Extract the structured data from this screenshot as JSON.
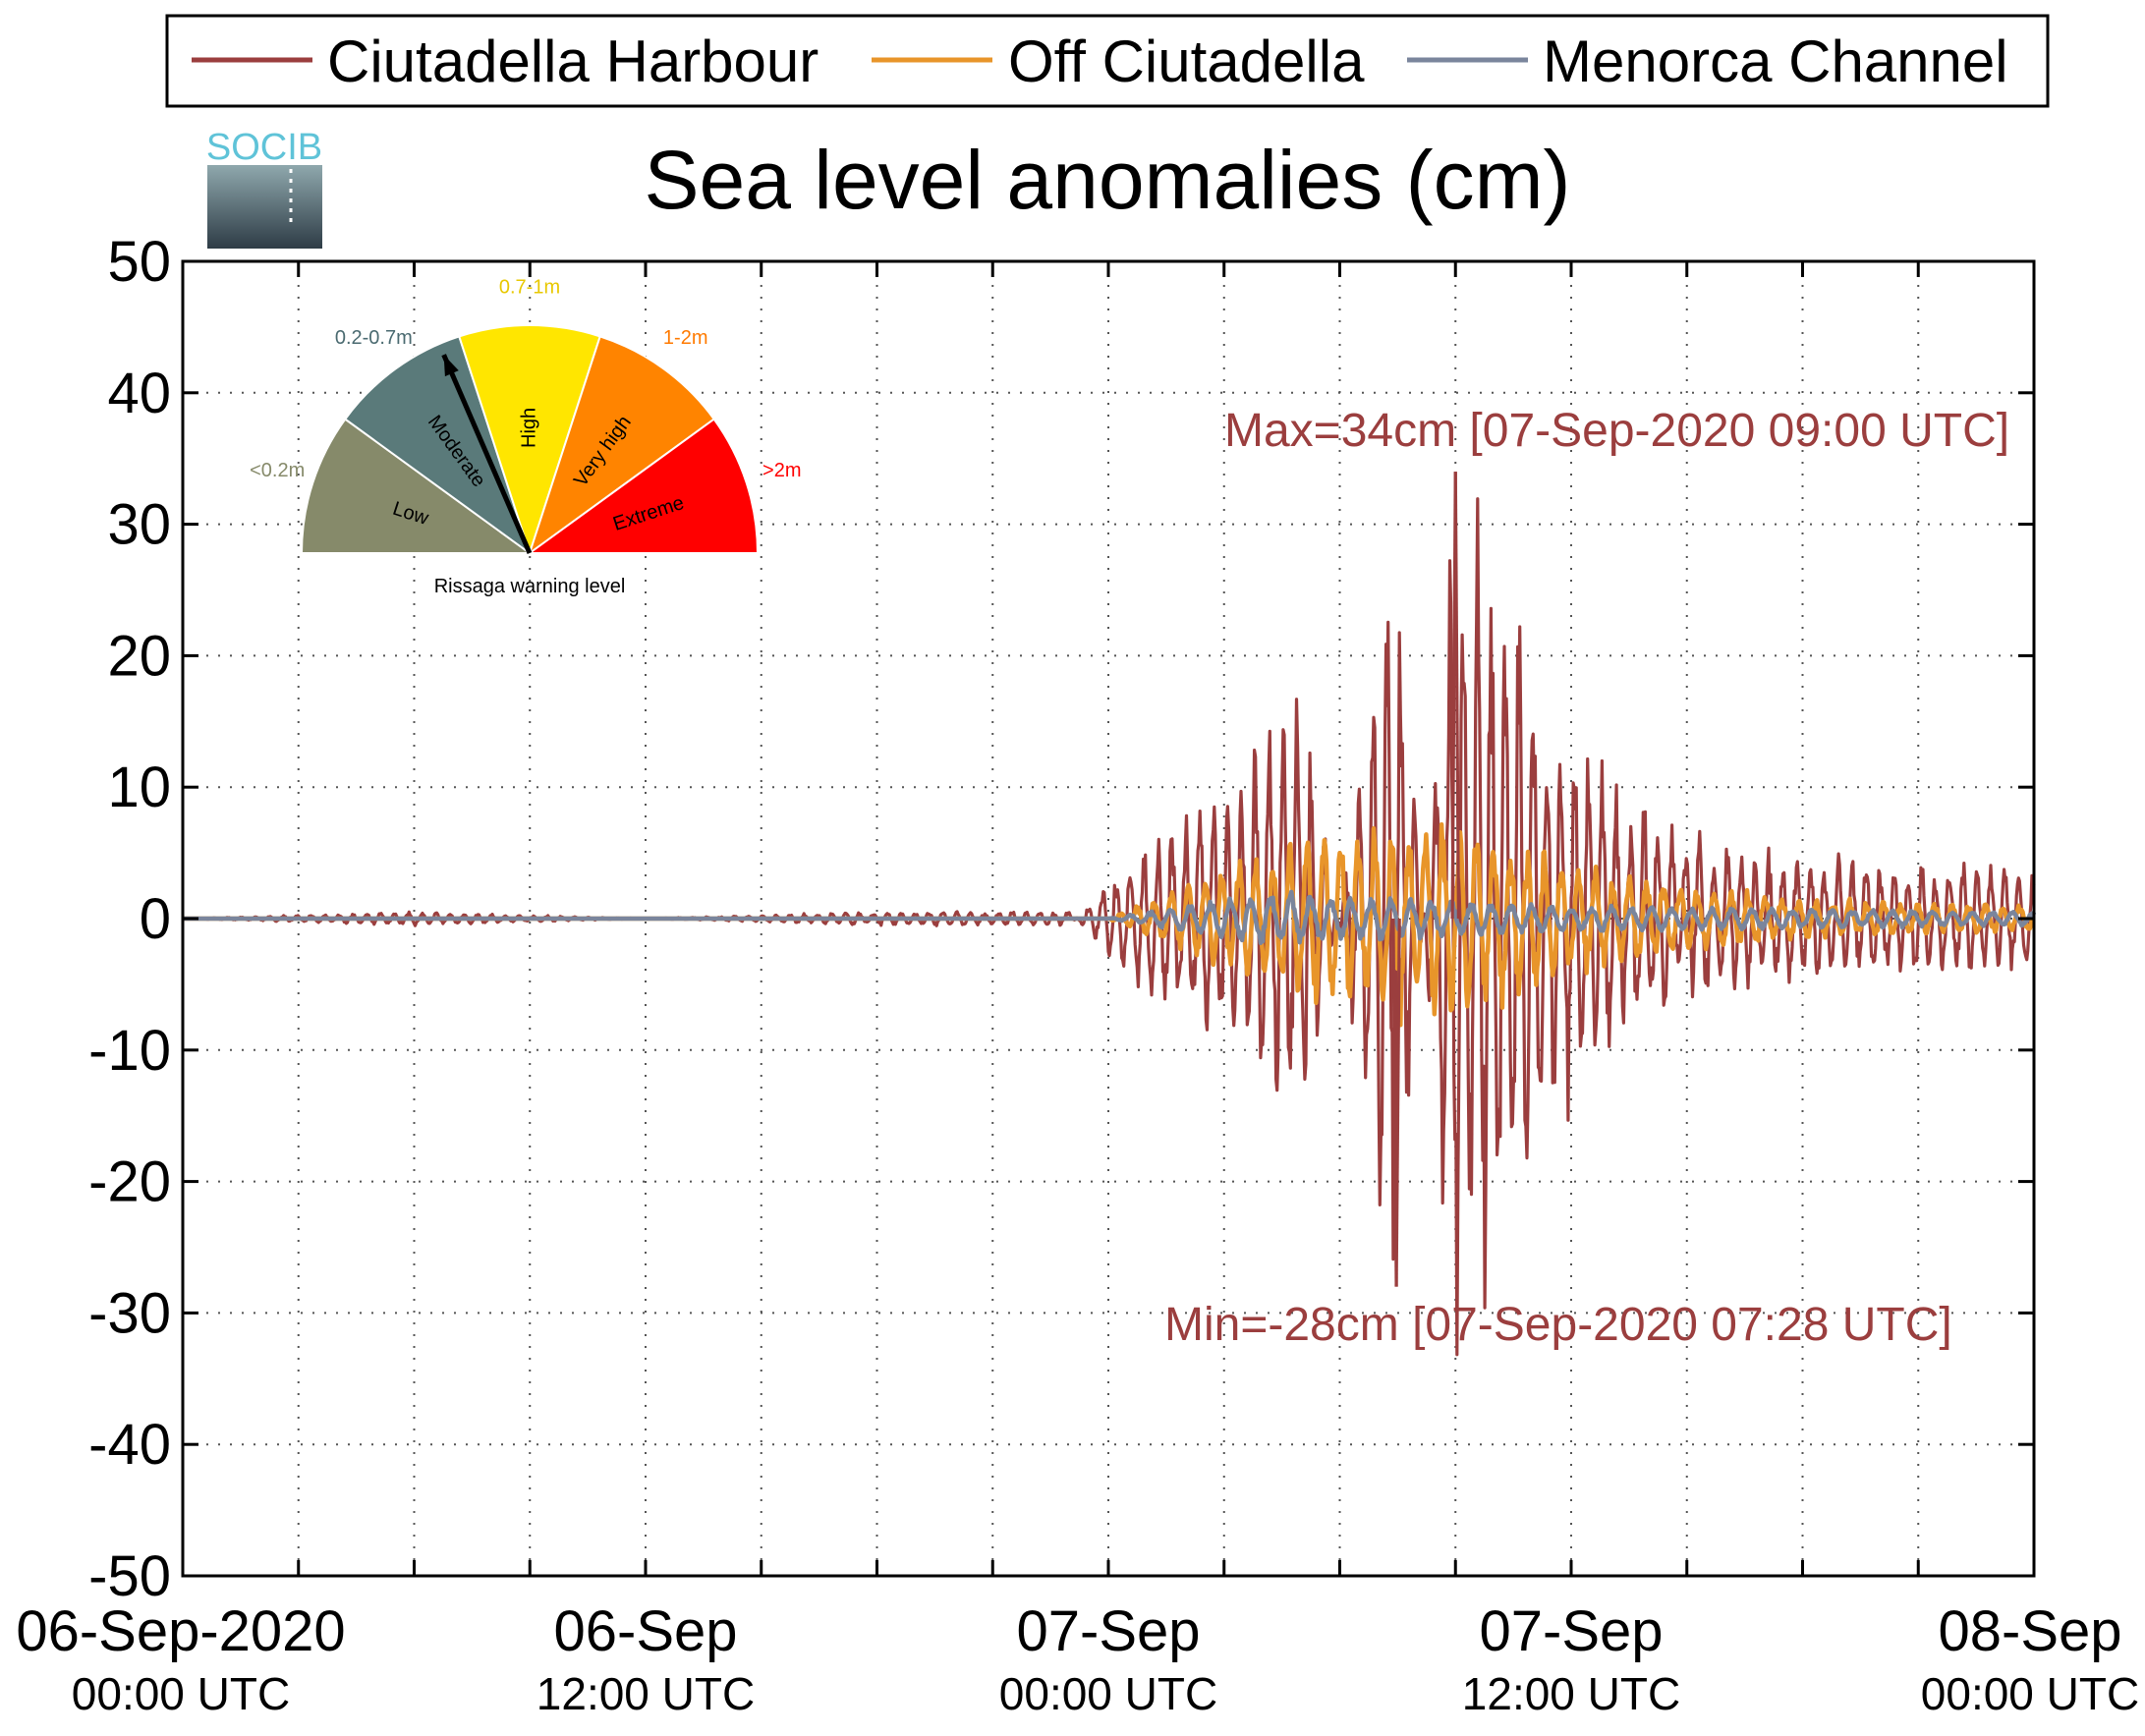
{
  "chart_data": {
    "type": "line",
    "title": "Sea level anomalies (cm)",
    "ylim": [
      -50,
      50
    ],
    "yticks": [
      "50",
      "40",
      "30",
      "20",
      "10",
      "0",
      "-10",
      "-20",
      "-30",
      "-40",
      "-50"
    ],
    "x_range": [
      "06-Sep-2020 00:00 UTC",
      "08-Sep-2020 00:00 UTC"
    ],
    "xticks": [
      {
        "line1": "06-Sep-2020",
        "line2": "00:00 UTC"
      },
      {
        "line1": "06-Sep",
        "line2": "12:00 UTC"
      },
      {
        "line1": "07-Sep",
        "line2": "00:00 UTC"
      },
      {
        "line1": "07-Sep",
        "line2": "12:00 UTC"
      },
      {
        "line1": "08-Sep",
        "line2": "00:00 UTC"
      }
    ],
    "grid": true,
    "legend_position": "top",
    "series": [
      {
        "name": "Ciutadella Harbour",
        "color": "#9b3e3e",
        "points": [
          [
            "06-Sep 00:00",
            0
          ],
          [
            "06-Sep 06:00",
            0.5
          ],
          [
            "06-Sep 12:00",
            0
          ],
          [
            "06-Sep 18:00",
            -0.5
          ],
          [
            "06-Sep 23:00",
            -0.5
          ],
          [
            "07-Sep 01:00",
            6
          ],
          [
            "07-Sep 03:00",
            9
          ],
          [
            "07-Sep 05:00",
            17
          ],
          [
            "07-Sep 07:28",
            -28
          ],
          [
            "07-Sep 09:00",
            34
          ],
          [
            "07-Sep 12:00",
            13
          ],
          [
            "07-Sep 15:00",
            6
          ],
          [
            "07-Sep 18:00",
            5
          ],
          [
            "07-Sep 21:00",
            4
          ],
          [
            "08-Sep 00:00",
            4
          ]
        ]
      },
      {
        "name": "Off Ciutadella",
        "color": "#e8952a",
        "points": [
          [
            "06-Sep 00:00",
            0
          ],
          [
            "07-Sep 00:00",
            0
          ],
          [
            "07-Sep 03:00",
            4
          ],
          [
            "07-Sep 05:00",
            6
          ],
          [
            "07-Sep 07:00",
            7
          ],
          [
            "07-Sep 09:00",
            8
          ],
          [
            "07-Sep 12:00",
            4
          ],
          [
            "07-Sep 18:00",
            1.5
          ],
          [
            "08-Sep 00:00",
            1
          ]
        ]
      },
      {
        "name": "Menorca Channel",
        "color": "#7a859c",
        "points": [
          [
            "06-Sep 00:00",
            0
          ],
          [
            "07-Sep 00:00",
            0
          ],
          [
            "07-Sep 04:00",
            2
          ],
          [
            "07-Sep 08:00",
            1.5
          ],
          [
            "07-Sep 12:00",
            1
          ],
          [
            "08-Sep 00:00",
            0.5
          ]
        ]
      }
    ],
    "annotations": [
      {
        "text": "Max=34cm [07-Sep-2020 09:00 UTC]",
        "color": "#9b3e3e"
      },
      {
        "text": "Min=-28cm [07-Sep-2020 07:28 UTC]",
        "color": "#9b3e3e"
      }
    ]
  },
  "logo": {
    "text": "SOCIB"
  },
  "gauge": {
    "caption": "Rissaga warning level",
    "segments": [
      {
        "name": "Low",
        "range": "<0.2m",
        "color": "#868a6a",
        "label_color": "#868a6a"
      },
      {
        "name": "Moderate",
        "range": "0.2-0.7m",
        "color": "#5a7a7a",
        "label_color": "#4a6a70"
      },
      {
        "name": "High",
        "range": "0.7-1m",
        "color": "#ffe600",
        "label_color": "#e8c800"
      },
      {
        "name": "Very high",
        "range": "1-2m",
        "color": "#ff8400",
        "label_color": "#ff7a00"
      },
      {
        "name": "Extreme",
        "range": ">2m",
        "color": "#ff0000",
        "label_color": "#ff0000"
      }
    ],
    "current_level": "Moderate"
  }
}
